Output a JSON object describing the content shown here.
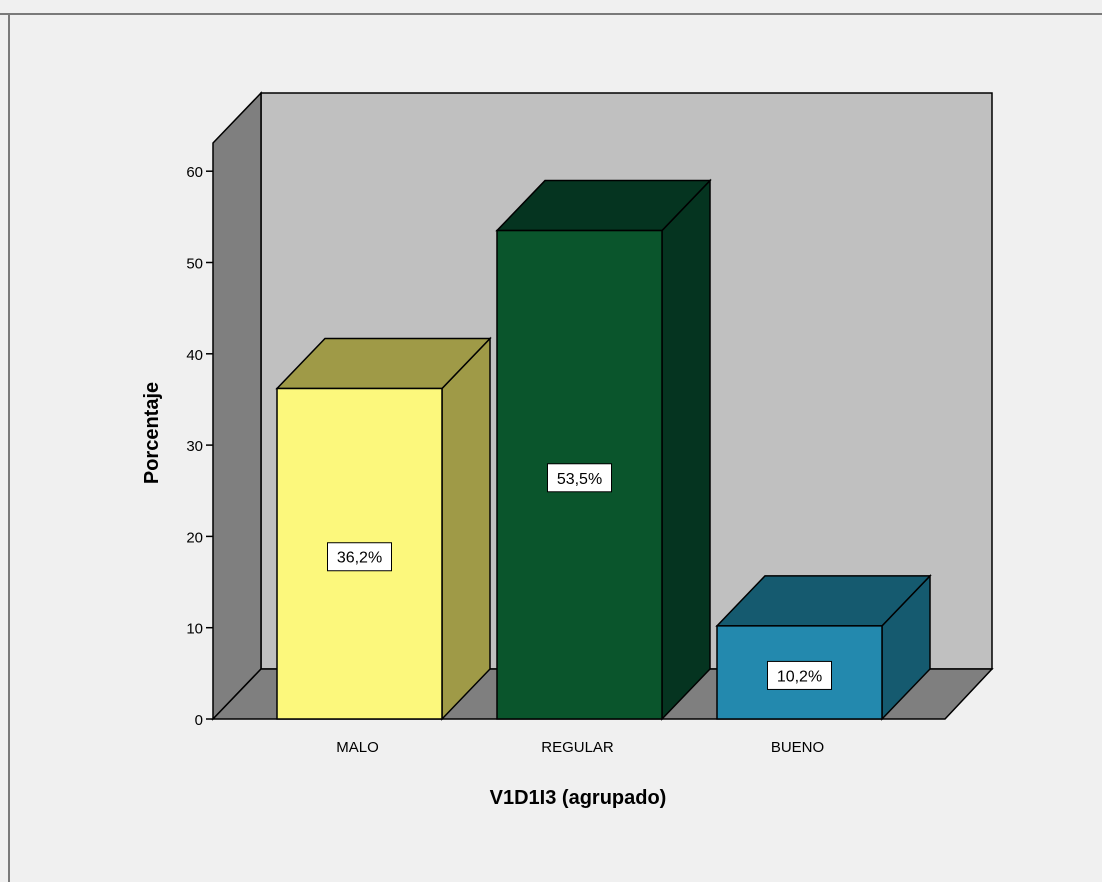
{
  "chart_data": {
    "type": "bar",
    "three_d": true,
    "categories": [
      "MALO",
      "REGULAR",
      "BUENO"
    ],
    "values": [
      36.2,
      53.5,
      10.2
    ],
    "data_labels": [
      "36,2%",
      "53,5%",
      "10,2%"
    ],
    "xlabel": "V1D1I3 (agrupado)",
    "ylabel": "Porcentaje",
    "ylim": [
      0,
      60
    ],
    "yticks": [
      0,
      10,
      20,
      30,
      40,
      50,
      60
    ],
    "grid": false,
    "legend": "none",
    "colors": {
      "bars_front": [
        "#fcf87c",
        "#0a552c",
        "#2389ae"
      ],
      "bars_side": [
        "#9f9a47",
        "#053420",
        "#155a6f"
      ],
      "bars_top": [
        "#9f9a47",
        "#053420",
        "#155a6f"
      ],
      "back_wall": "#c0c0c0",
      "side_wall": "#7f7f7f",
      "floor": "#7f7f7f",
      "background": "#f0f0f0"
    }
  }
}
